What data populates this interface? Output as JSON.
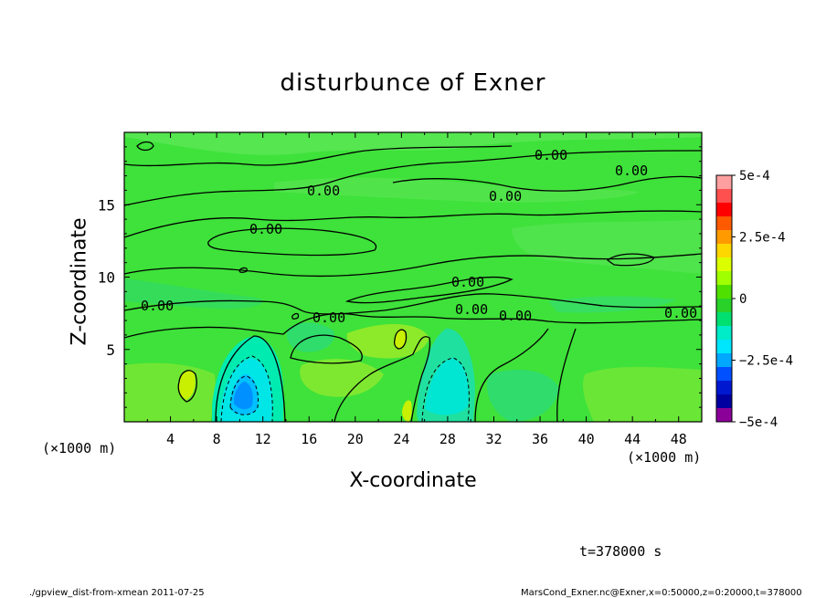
{
  "chart_data": {
    "type": "heatmap",
    "title": "disturbunce of Exner",
    "xlabel": "X-coordinate",
    "ylabel": "Z-coordinate",
    "x_unit": "(×1000 m)",
    "y_unit": "(×1000 m)",
    "xlim": [
      0,
      50
    ],
    "ylim": [
      0,
      20
    ],
    "x_ticks": [
      "4",
      "8",
      "12",
      "16",
      "20",
      "24",
      "28",
      "32",
      "36",
      "40",
      "44",
      "48"
    ],
    "y_ticks": [
      "5",
      "10",
      "15"
    ],
    "colorbar": {
      "range": [
        -0.0005,
        0.0005
      ],
      "tick_labels": [
        "5e-4",
        "2.5e-4",
        "0",
        "−2.5e-4",
        "−5e-4"
      ],
      "colors": [
        "#ffa0a0",
        "#ff5050",
        "#ff0000",
        "#ff5a00",
        "#ff9b00",
        "#ffd700",
        "#dcff00",
        "#a0ff00",
        "#50e000",
        "#28d228",
        "#00e070",
        "#00ebc8",
        "#00e6ff",
        "#00a8ff",
        "#0050ff",
        "#0018d0",
        "#0000a0",
        "#8c009a"
      ]
    },
    "contour_labels": [
      "0.00",
      "0.00",
      "0.00",
      "0.00",
      "0.00",
      "0.00",
      "0.00",
      "0.00",
      "0.00",
      "0.00",
      "0.00"
    ],
    "features": [
      {
        "x": 10,
        "z": 2.0,
        "value": -0.0003
      },
      {
        "x": 27,
        "z": 2.0,
        "value": -0.0002
      },
      {
        "x": 5.5,
        "z": 2.5,
        "value": 0.0001
      },
      {
        "x": 23.8,
        "z": 6.0,
        "value": 0.0001
      }
    ]
  },
  "time_label": "t=378000 s",
  "footer_left": "./gpview_dist-from-xmean   2011-07-25",
  "footer_right": "MarsCond_Exner.nc@Exner,x=0:50000,z=0:20000,t=378000"
}
